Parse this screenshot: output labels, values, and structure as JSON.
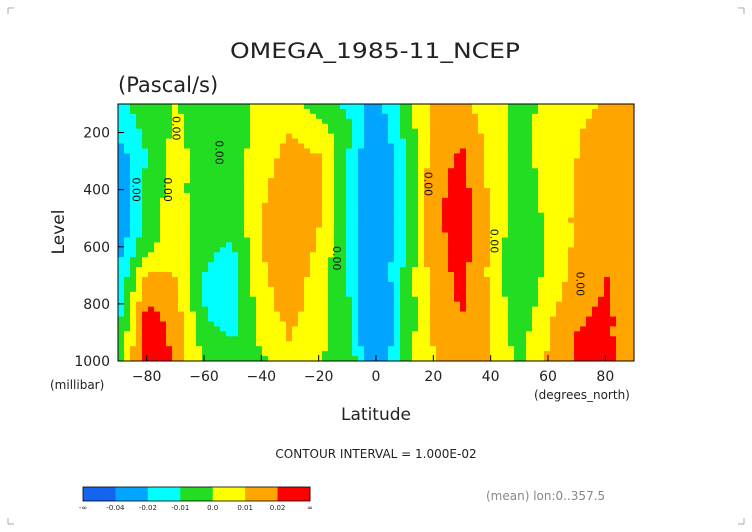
{
  "chart_data": {
    "type": "heatmap",
    "title": "OMEGA_1985-11_NCEP",
    "subtitle": "(Pascal/s)",
    "xlabel": "Latitude",
    "ylabel": "Level",
    "x_units": "(degrees_north)",
    "y_units": "(millibar)",
    "xlim": [
      -90,
      90
    ],
    "ylim": [
      1000,
      100
    ],
    "x_ticks": [
      -80,
      -60,
      -40,
      -20,
      0,
      20,
      40,
      60,
      80
    ],
    "y_ticks": [
      200,
      400,
      600,
      800,
      1000
    ],
    "contour_interval_text": "CONTOUR INTERVAL = 1.000E-02",
    "footnote": "(mean) lon:0..357.5",
    "contour_labels": [
      {
        "text": "0.00",
        "lat": -71,
        "level": 185
      },
      {
        "text": "0.00",
        "lat": -56,
        "level": 270
      },
      {
        "text": "0.00",
        "lat": -74,
        "level": 400
      },
      {
        "text": "0.00",
        "lat": -85,
        "level": 400
      },
      {
        "text": "0.00",
        "lat": -15,
        "level": 640
      },
      {
        "text": "0.00",
        "lat": 17,
        "level": 380
      },
      {
        "text": "0.00",
        "lat": 40,
        "level": 580
      },
      {
        "text": "0.00",
        "lat": 70,
        "level": 730
      }
    ],
    "colorbar": {
      "colors": [
        "#1464f0",
        "#00a5ff",
        "#00ffff",
        "#22dd22",
        "#ffff00",
        "#ffa500",
        "#ff0000"
      ],
      "labels": [
        "-∞",
        "-0.04",
        "-0.02",
        "-0.01",
        "0.0",
        "0.01",
        "0.02",
        "∞"
      ]
    },
    "lat_grid": [
      -90,
      -80,
      -70,
      -60,
      -50,
      -40,
      -30,
      -20,
      -10,
      0,
      10,
      20,
      30,
      40,
      50,
      60,
      70,
      80,
      90
    ],
    "levels": [
      100,
      200,
      300,
      400,
      500,
      600,
      700,
      800,
      850,
      900,
      950,
      1000
    ],
    "values": [
      [
        -0.012,
        -0.005,
        0.0,
        -0.003,
        -0.005,
        0.004,
        0.004,
        -0.004,
        -0.012,
        -0.025,
        -0.005,
        0.01,
        0.012,
        0.004,
        -0.004,
        0.003,
        0.008,
        0.01,
        0.01
      ],
      [
        -0.018,
        -0.008,
        0.002,
        -0.004,
        -0.006,
        0.005,
        0.01,
        0.005,
        -0.006,
        -0.03,
        -0.008,
        0.014,
        0.018,
        0.006,
        -0.004,
        0.004,
        0.009,
        0.014,
        0.013
      ],
      [
        -0.028,
        -0.01,
        0.004,
        -0.005,
        -0.006,
        0.007,
        0.013,
        0.012,
        -0.011,
        -0.035,
        -0.012,
        0.016,
        0.022,
        0.007,
        -0.004,
        0.004,
        0.01,
        0.017,
        0.015
      ],
      [
        -0.032,
        -0.006,
        0.004,
        -0.006,
        -0.006,
        0.008,
        0.016,
        0.012,
        -0.012,
        -0.038,
        -0.013,
        0.017,
        0.024,
        0.008,
        -0.006,
        0.003,
        0.011,
        0.018,
        0.016
      ],
      [
        -0.032,
        -0.005,
        0.005,
        -0.006,
        -0.008,
        0.01,
        0.018,
        0.011,
        -0.012,
        -0.036,
        -0.012,
        0.017,
        0.025,
        0.009,
        -0.007,
        0.002,
        0.012,
        0.018,
        0.017
      ],
      [
        -0.025,
        -0.003,
        0.006,
        -0.008,
        -0.011,
        0.01,
        0.018,
        0.009,
        -0.011,
        -0.032,
        -0.01,
        0.016,
        0.025,
        0.008,
        -0.009,
        0.001,
        0.012,
        0.019,
        0.018
      ],
      [
        -0.02,
        0.012,
        0.01,
        -0.01,
        -0.014,
        0.008,
        0.016,
        0.006,
        -0.01,
        -0.032,
        -0.008,
        0.015,
        0.023,
        0.008,
        -0.01,
        0.003,
        0.014,
        0.02,
        0.018
      ],
      [
        -0.016,
        0.02,
        0.014,
        -0.01,
        -0.016,
        0.006,
        0.015,
        0.004,
        -0.008,
        -0.036,
        -0.008,
        0.014,
        0.021,
        0.009,
        -0.008,
        0.006,
        0.017,
        0.021,
        0.016
      ],
      [
        -0.014,
        0.024,
        0.016,
        -0.009,
        -0.015,
        0.004,
        0.013,
        0.003,
        -0.006,
        -0.04,
        -0.008,
        0.012,
        0.02,
        0.01,
        -0.006,
        0.008,
        0.019,
        0.022,
        0.015
      ],
      [
        -0.012,
        0.026,
        0.017,
        -0.007,
        -0.012,
        0.002,
        0.011,
        0.002,
        -0.004,
        -0.042,
        -0.006,
        0.011,
        0.019,
        0.011,
        -0.005,
        0.01,
        0.02,
        0.022,
        0.014
      ],
      [
        -0.01,
        0.028,
        0.018,
        -0.004,
        -0.008,
        0.001,
        0.01,
        0.001,
        -0.003,
        -0.038,
        -0.004,
        0.01,
        0.018,
        0.01,
        -0.004,
        0.01,
        0.021,
        0.024,
        0.013
      ],
      [
        -0.008,
        0.03,
        0.018,
        -0.002,
        -0.005,
        -0.002,
        0.008,
        0.0,
        -0.002,
        -0.03,
        -0.002,
        0.009,
        0.017,
        0.01,
        -0.003,
        0.012,
        0.022,
        0.025,
        0.012
      ]
    ]
  }
}
